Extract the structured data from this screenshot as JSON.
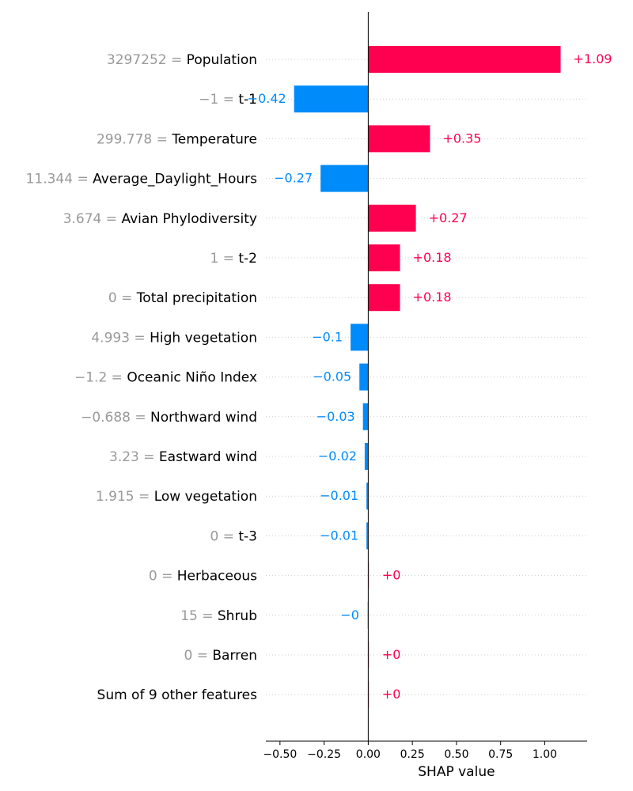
{
  "chart_data": {
    "type": "bar",
    "subtype": "shap-waterfall-horizontal",
    "xlabel": "SHAP value",
    "xlim": [
      -0.58,
      1.24
    ],
    "x_ticks": [
      -0.5,
      -0.25,
      0.0,
      0.25,
      0.5,
      0.75,
      1.0
    ],
    "x_tick_labels": [
      "−0.50",
      "−0.25",
      "0.00",
      "0.25",
      "0.50",
      "0.75",
      "1.00"
    ],
    "grid": "dotted-per-row",
    "colors": {
      "positive": "#ff0051",
      "negative": "#008bfb",
      "feature_value": "#999999",
      "zero_line": "#000000"
    },
    "features": [
      {
        "value_text": "3297252 = ",
        "name": "Population",
        "shap": 1.09,
        "label": "+1.09"
      },
      {
        "value_text": "−1 = ",
        "name": "t-1",
        "shap": -0.42,
        "label": "−0.42"
      },
      {
        "value_text": "299.778 = ",
        "name": "Temperature",
        "shap": 0.35,
        "label": "+0.35"
      },
      {
        "value_text": "11.344 = ",
        "name": "Average_Daylight_Hours",
        "shap": -0.27,
        "label": "−0.27"
      },
      {
        "value_text": "3.674 = ",
        "name": "Avian Phylodiversity",
        "shap": 0.27,
        "label": "+0.27"
      },
      {
        "value_text": "1 = ",
        "name": "t-2",
        "shap": 0.18,
        "label": "+0.18"
      },
      {
        "value_text": "0 = ",
        "name": "Total precipitation",
        "shap": 0.18,
        "label": "+0.18"
      },
      {
        "value_text": "4.993 = ",
        "name": "High vegetation",
        "shap": -0.1,
        "label": "−0.1"
      },
      {
        "value_text": "−1.2 = ",
        "name": "Oceanic Niño Index",
        "shap": -0.05,
        "label": "−0.05"
      },
      {
        "value_text": "−0.688 = ",
        "name": "Northward wind",
        "shap": -0.03,
        "label": "−0.03"
      },
      {
        "value_text": "3.23 = ",
        "name": "Eastward wind",
        "shap": -0.02,
        "label": "−0.02"
      },
      {
        "value_text": "1.915 = ",
        "name": "Low vegetation",
        "shap": -0.01,
        "label": "−0.01"
      },
      {
        "value_text": "0 = ",
        "name": "t-3",
        "shap": -0.01,
        "label": "−0.01"
      },
      {
        "value_text": "0 = ",
        "name": "Herbaceous",
        "shap": 0.0,
        "label": "+0"
      },
      {
        "value_text": "15 = ",
        "name": "Shrub",
        "shap": -0.002,
        "label": "−0"
      },
      {
        "value_text": "0 = ",
        "name": "Barren",
        "shap": 0.002,
        "label": "+0"
      },
      {
        "value_text": "",
        "name": "Sum of 9 other features",
        "shap": 0.002,
        "label": "+0"
      }
    ]
  }
}
